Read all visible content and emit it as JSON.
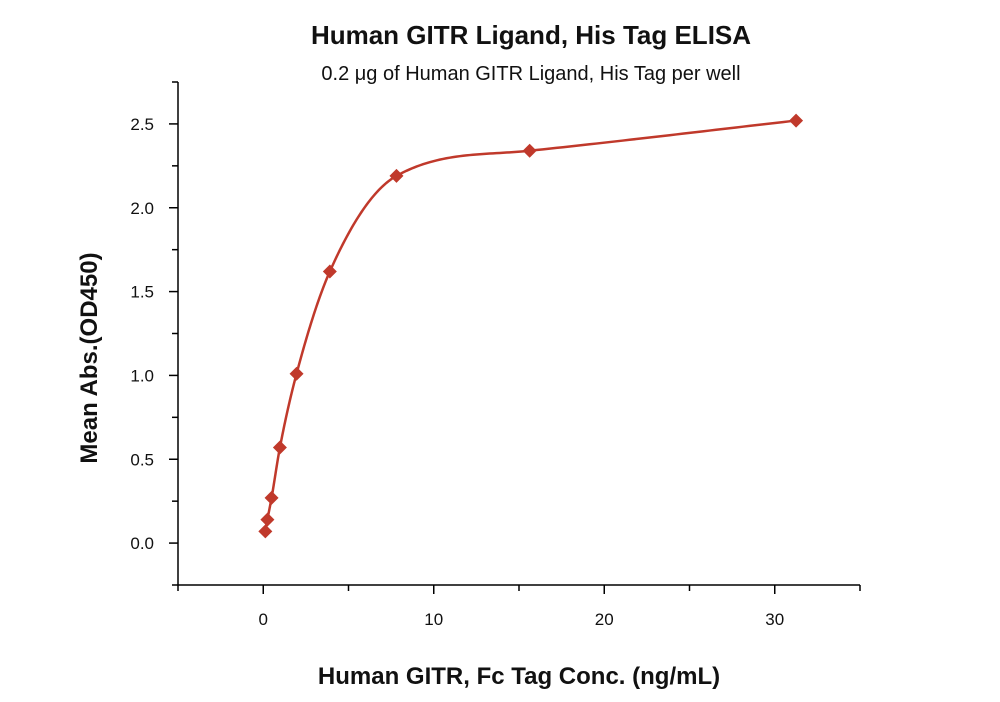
{
  "chart_data": {
    "type": "scatter",
    "title": "Human GITR Ligand, His Tag ELISA",
    "subtitle": "0.2 μg of Human GITR Ligand, His Tag per well",
    "xlabel": "Human GITR, Fc Tag Conc. (ng/mL)",
    "ylabel": "Mean Abs.(OD450)",
    "xlim": [
      -5,
      35
    ],
    "ylim": [
      -0.25,
      2.75
    ],
    "x_ticks": [
      0,
      10,
      20,
      30
    ],
    "x_tick_labels": [
      "0",
      "10",
      "20",
      "30"
    ],
    "y_ticks": [
      0,
      0.5,
      1.0,
      1.5,
      2.0,
      2.5
    ],
    "y_tick_labels": [
      "0.0",
      "0.5",
      "1.0",
      "1.5",
      "2.0",
      "2.5"
    ],
    "grid": false,
    "series": [
      {
        "x": [
          0.122,
          0.244,
          0.488,
          0.977,
          1.953,
          3.906,
          7.813,
          15.625,
          31.25
        ],
        "y": [
          0.07,
          0.14,
          0.27,
          0.57,
          1.01,
          1.62,
          2.19,
          2.34,
          2.52
        ],
        "marker": "diamond",
        "color": "#c0392b",
        "fit": "sigmoidal"
      }
    ]
  }
}
